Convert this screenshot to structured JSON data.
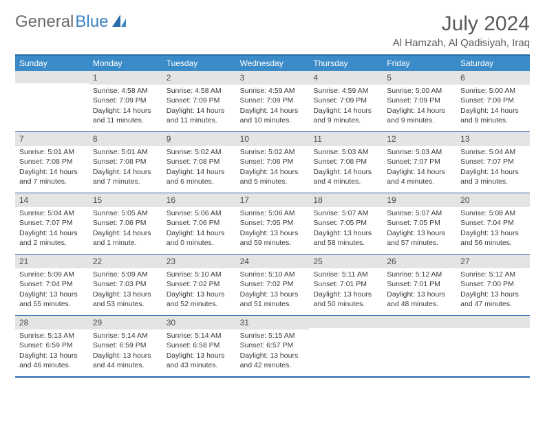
{
  "logo": {
    "general": "General",
    "blue": "Blue"
  },
  "title": "July 2024",
  "location": "Al Hamzah, Al Qadisiyah, Iraq",
  "weekdays": [
    "Sunday",
    "Monday",
    "Tuesday",
    "Wednesday",
    "Thursday",
    "Friday",
    "Saturday"
  ],
  "colors": {
    "header_bg": "#3b8bc9",
    "border": "#2b6aa8",
    "daynum_bg": "#e4e4e4",
    "text": "#3a3a3a"
  },
  "weeks": [
    [
      {
        "n": "",
        "sr": "",
        "ss": "",
        "dl": ""
      },
      {
        "n": "1",
        "sr": "Sunrise: 4:58 AM",
        "ss": "Sunset: 7:09 PM",
        "dl": "Daylight: 14 hours and 11 minutes."
      },
      {
        "n": "2",
        "sr": "Sunrise: 4:58 AM",
        "ss": "Sunset: 7:09 PM",
        "dl": "Daylight: 14 hours and 11 minutes."
      },
      {
        "n": "3",
        "sr": "Sunrise: 4:59 AM",
        "ss": "Sunset: 7:09 PM",
        "dl": "Daylight: 14 hours and 10 minutes."
      },
      {
        "n": "4",
        "sr": "Sunrise: 4:59 AM",
        "ss": "Sunset: 7:09 PM",
        "dl": "Daylight: 14 hours and 9 minutes."
      },
      {
        "n": "5",
        "sr": "Sunrise: 5:00 AM",
        "ss": "Sunset: 7:09 PM",
        "dl": "Daylight: 14 hours and 9 minutes."
      },
      {
        "n": "6",
        "sr": "Sunrise: 5:00 AM",
        "ss": "Sunset: 7:09 PM",
        "dl": "Daylight: 14 hours and 8 minutes."
      }
    ],
    [
      {
        "n": "7",
        "sr": "Sunrise: 5:01 AM",
        "ss": "Sunset: 7:08 PM",
        "dl": "Daylight: 14 hours and 7 minutes."
      },
      {
        "n": "8",
        "sr": "Sunrise: 5:01 AM",
        "ss": "Sunset: 7:08 PM",
        "dl": "Daylight: 14 hours and 7 minutes."
      },
      {
        "n": "9",
        "sr": "Sunrise: 5:02 AM",
        "ss": "Sunset: 7:08 PM",
        "dl": "Daylight: 14 hours and 6 minutes."
      },
      {
        "n": "10",
        "sr": "Sunrise: 5:02 AM",
        "ss": "Sunset: 7:08 PM",
        "dl": "Daylight: 14 hours and 5 minutes."
      },
      {
        "n": "11",
        "sr": "Sunrise: 5:03 AM",
        "ss": "Sunset: 7:08 PM",
        "dl": "Daylight: 14 hours and 4 minutes."
      },
      {
        "n": "12",
        "sr": "Sunrise: 5:03 AM",
        "ss": "Sunset: 7:07 PM",
        "dl": "Daylight: 14 hours and 4 minutes."
      },
      {
        "n": "13",
        "sr": "Sunrise: 5:04 AM",
        "ss": "Sunset: 7:07 PM",
        "dl": "Daylight: 14 hours and 3 minutes."
      }
    ],
    [
      {
        "n": "14",
        "sr": "Sunrise: 5:04 AM",
        "ss": "Sunset: 7:07 PM",
        "dl": "Daylight: 14 hours and 2 minutes."
      },
      {
        "n": "15",
        "sr": "Sunrise: 5:05 AM",
        "ss": "Sunset: 7:06 PM",
        "dl": "Daylight: 14 hours and 1 minute."
      },
      {
        "n": "16",
        "sr": "Sunrise: 5:06 AM",
        "ss": "Sunset: 7:06 PM",
        "dl": "Daylight: 14 hours and 0 minutes."
      },
      {
        "n": "17",
        "sr": "Sunrise: 5:06 AM",
        "ss": "Sunset: 7:05 PM",
        "dl": "Daylight: 13 hours and 59 minutes."
      },
      {
        "n": "18",
        "sr": "Sunrise: 5:07 AM",
        "ss": "Sunset: 7:05 PM",
        "dl": "Daylight: 13 hours and 58 minutes."
      },
      {
        "n": "19",
        "sr": "Sunrise: 5:07 AM",
        "ss": "Sunset: 7:05 PM",
        "dl": "Daylight: 13 hours and 57 minutes."
      },
      {
        "n": "20",
        "sr": "Sunrise: 5:08 AM",
        "ss": "Sunset: 7:04 PM",
        "dl": "Daylight: 13 hours and 56 minutes."
      }
    ],
    [
      {
        "n": "21",
        "sr": "Sunrise: 5:09 AM",
        "ss": "Sunset: 7:04 PM",
        "dl": "Daylight: 13 hours and 55 minutes."
      },
      {
        "n": "22",
        "sr": "Sunrise: 5:09 AM",
        "ss": "Sunset: 7:03 PM",
        "dl": "Daylight: 13 hours and 53 minutes."
      },
      {
        "n": "23",
        "sr": "Sunrise: 5:10 AM",
        "ss": "Sunset: 7:02 PM",
        "dl": "Daylight: 13 hours and 52 minutes."
      },
      {
        "n": "24",
        "sr": "Sunrise: 5:10 AM",
        "ss": "Sunset: 7:02 PM",
        "dl": "Daylight: 13 hours and 51 minutes."
      },
      {
        "n": "25",
        "sr": "Sunrise: 5:11 AM",
        "ss": "Sunset: 7:01 PM",
        "dl": "Daylight: 13 hours and 50 minutes."
      },
      {
        "n": "26",
        "sr": "Sunrise: 5:12 AM",
        "ss": "Sunset: 7:01 PM",
        "dl": "Daylight: 13 hours and 48 minutes."
      },
      {
        "n": "27",
        "sr": "Sunrise: 5:12 AM",
        "ss": "Sunset: 7:00 PM",
        "dl": "Daylight: 13 hours and 47 minutes."
      }
    ],
    [
      {
        "n": "28",
        "sr": "Sunrise: 5:13 AM",
        "ss": "Sunset: 6:59 PM",
        "dl": "Daylight: 13 hours and 46 minutes."
      },
      {
        "n": "29",
        "sr": "Sunrise: 5:14 AM",
        "ss": "Sunset: 6:59 PM",
        "dl": "Daylight: 13 hours and 44 minutes."
      },
      {
        "n": "30",
        "sr": "Sunrise: 5:14 AM",
        "ss": "Sunset: 6:58 PM",
        "dl": "Daylight: 13 hours and 43 minutes."
      },
      {
        "n": "31",
        "sr": "Sunrise: 5:15 AM",
        "ss": "Sunset: 6:57 PM",
        "dl": "Daylight: 13 hours and 42 minutes."
      },
      {
        "n": "",
        "sr": "",
        "ss": "",
        "dl": ""
      },
      {
        "n": "",
        "sr": "",
        "ss": "",
        "dl": ""
      },
      {
        "n": "",
        "sr": "",
        "ss": "",
        "dl": ""
      }
    ]
  ]
}
